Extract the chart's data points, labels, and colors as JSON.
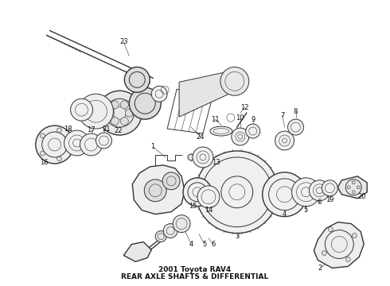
{
  "title": "2001 Toyota RAV4",
  "subtitle": "REAR AXLE SHAFTS & DIFFERENTIAL",
  "bg_color": "#ffffff",
  "line_color": "#333333",
  "label_color": "#111111",
  "fig_width": 4.9,
  "fig_height": 3.6,
  "dpi": 100
}
